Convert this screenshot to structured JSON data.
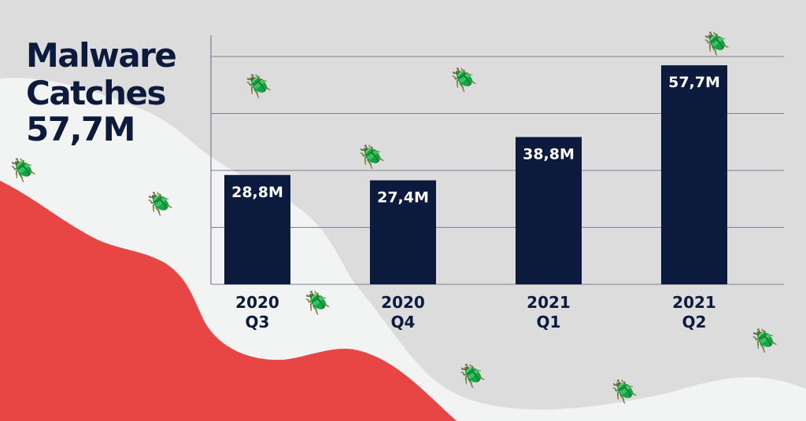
{
  "title": {
    "line1": "Malware",
    "line2": "Catches",
    "line3": "57,7M"
  },
  "colors": {
    "background": "#dcdcdc",
    "light_wave": "#f2f3f3",
    "red_wave": "#e74645",
    "bar": "#0c1a3e",
    "title_text": "#0c1a3e",
    "grid": "#7b7f9c",
    "bug_dark": "#7b7f8f",
    "bug_light": "#b4b6c0"
  },
  "decor": {
    "icon": "bug-icon"
  },
  "chart_data": {
    "type": "bar",
    "categories": [
      [
        "2020",
        "Q3"
      ],
      [
        "2020",
        "Q4"
      ],
      [
        "2021",
        "Q1"
      ],
      [
        "2021",
        "Q2"
      ]
    ],
    "values": [
      28.8,
      27.4,
      38.8,
      57.7
    ],
    "value_labels": [
      "28,8M",
      "27,4M",
      "38,8M",
      "57,7M"
    ],
    "units": "M",
    "ylim": [
      0,
      60
    ],
    "grid": true,
    "legend": "none"
  }
}
